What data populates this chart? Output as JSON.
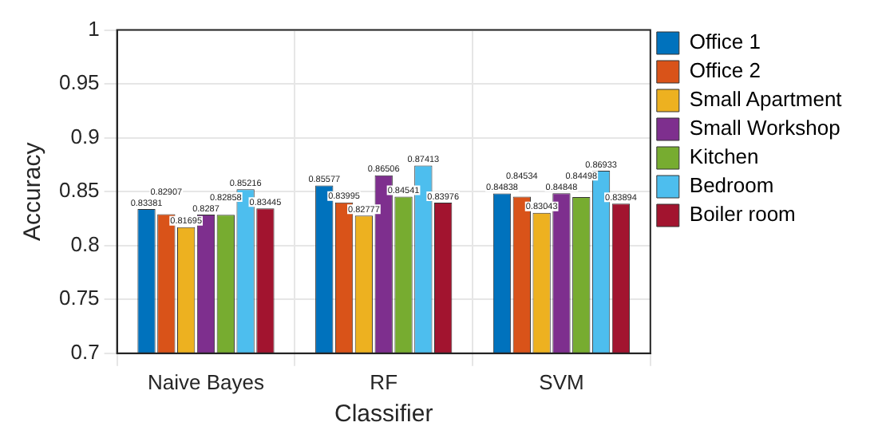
{
  "chart_data": {
    "type": "bar",
    "xlabel": "Classifier",
    "ylabel": "Accuracy",
    "categories": [
      "Naive Bayes",
      "RF",
      "SVM"
    ],
    "series": [
      {
        "name": "Office 1",
        "color": "#0072bd",
        "values": [
          0.83381,
          0.85577,
          0.84838
        ]
      },
      {
        "name": "Office 2",
        "color": "#d95319",
        "values": [
          0.82907,
          0.83995,
          0.84534
        ]
      },
      {
        "name": "Small Apartment",
        "color": "#edb120",
        "values": [
          0.81695,
          0.82777,
          0.83043
        ]
      },
      {
        "name": "Small Workshop",
        "color": "#7e2f8e",
        "values": [
          0.8287,
          0.86506,
          0.84848
        ]
      },
      {
        "name": "Kitchen",
        "color": "#77ac30",
        "values": [
          0.82858,
          0.84541,
          0.84498
        ]
      },
      {
        "name": "Bedroom",
        "color": "#4dbeee",
        "values": [
          0.85216,
          0.87413,
          0.86933
        ]
      },
      {
        "name": "Boiler room",
        "color": "#a2142f",
        "values": [
          0.83445,
          0.83976,
          0.83894
        ]
      }
    ],
    "ylim": [
      0.7,
      1
    ],
    "yticks": [
      0.7,
      0.75,
      0.8,
      0.85,
      0.9,
      0.95,
      1
    ],
    "grid": true,
    "legend": "right",
    "data_labels": true
  }
}
